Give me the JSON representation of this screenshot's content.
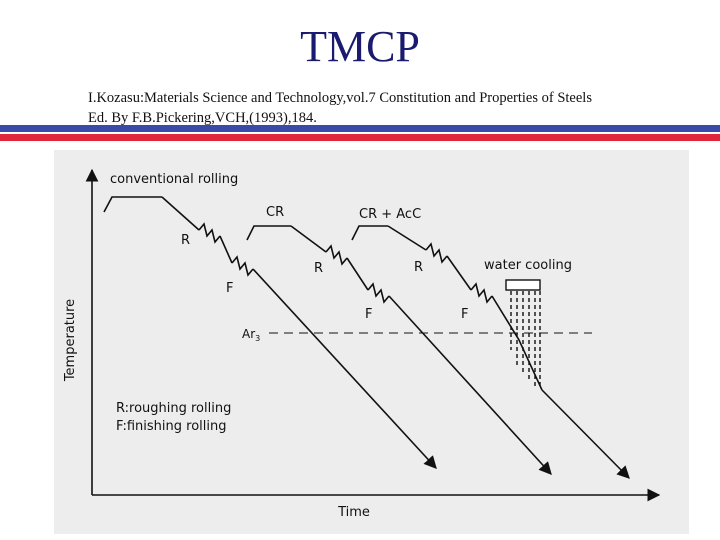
{
  "header": {
    "title": "TMCP",
    "reference_line1": "I.Kozasu:Materials Science and Technology,vol.7 Constitution and Properties of Steels",
    "reference_line2": "Ed. By F.B.Pickering,VCH,(1993),184."
  },
  "colors": {
    "title": "#1a1a6e",
    "bar_blue": "#3a4aa8",
    "bar_red": "#e0263a",
    "figure_bg": "#ededed"
  },
  "diagram": {
    "y_axis_label": "Temperature",
    "x_axis_label": "Time",
    "line_ar3": {
      "base": "Ar",
      "subscript": "3"
    },
    "process_labels": {
      "conventional": "conventional rolling",
      "cr": "CR",
      "cr_acc": "CR + AcC",
      "water_cooling": "water cooling"
    },
    "roll_marks": {
      "r": "R",
      "f": "F"
    },
    "legend": {
      "line1": "R:roughing rolling",
      "line2": "F:finishing rolling"
    }
  }
}
